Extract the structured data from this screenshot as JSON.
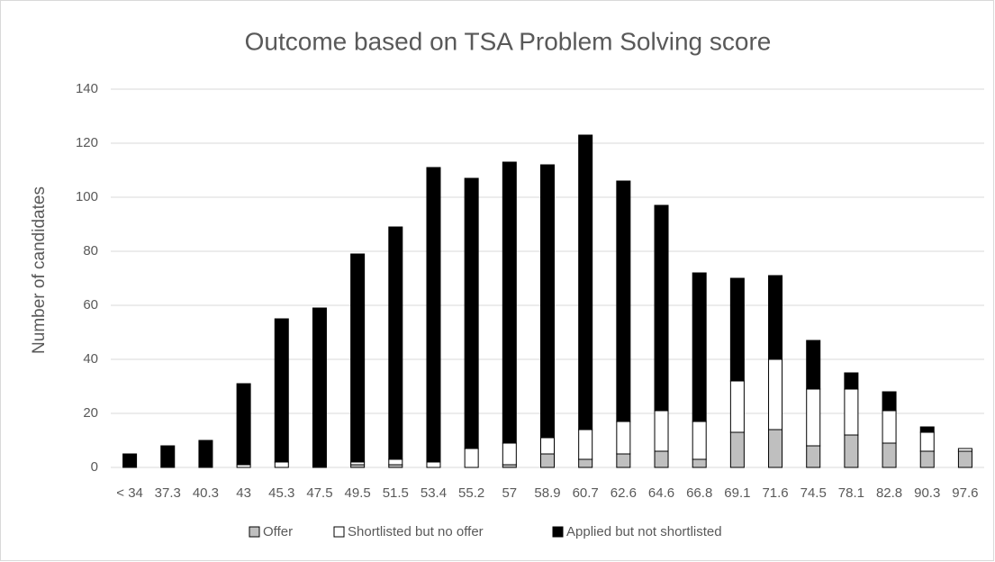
{
  "chart_data": {
    "type": "stacked_bar",
    "title": "Outcome based on TSA Problem Solving score",
    "y_label": "Number of candidates",
    "categories": [
      "< 34",
      "37.3",
      "40.3",
      "43",
      "45.3",
      "47.5",
      "49.5",
      "51.5",
      "53.4",
      "55.2",
      "57",
      "58.9",
      "60.7",
      "62.6",
      "64.6",
      "66.8",
      "69.1",
      "71.6",
      "74.5",
      "78.1",
      "82.8",
      "90.3",
      "97.6"
    ],
    "series": [
      {
        "name": "Offer",
        "color": "#bfbfbf",
        "values": [
          0,
          0,
          0,
          0,
          0,
          0,
          1,
          1,
          0,
          0,
          1,
          5,
          3,
          5,
          6,
          3,
          13,
          14,
          8,
          12,
          9,
          6,
          6
        ]
      },
      {
        "name": "Shortlisted but no offer",
        "color": "#ffffff",
        "values": [
          0,
          0,
          0,
          1,
          2,
          0,
          1,
          2,
          2,
          7,
          8,
          6,
          11,
          12,
          15,
          14,
          19,
          26,
          21,
          17,
          12,
          7,
          1
        ]
      },
      {
        "name": "Applied but not shortlisted",
        "color": "#000000",
        "values": [
          5,
          8,
          10,
          30,
          53,
          59,
          77,
          86,
          109,
          100,
          104,
          101,
          109,
          89,
          76,
          55,
          38,
          31,
          18,
          6,
          7,
          2,
          0
        ]
      }
    ],
    "ylim": [
      0,
      140
    ],
    "yticks": [
      0,
      20,
      40,
      60,
      80,
      100,
      120,
      140
    ],
    "grid": true,
    "legend": "bottom"
  }
}
